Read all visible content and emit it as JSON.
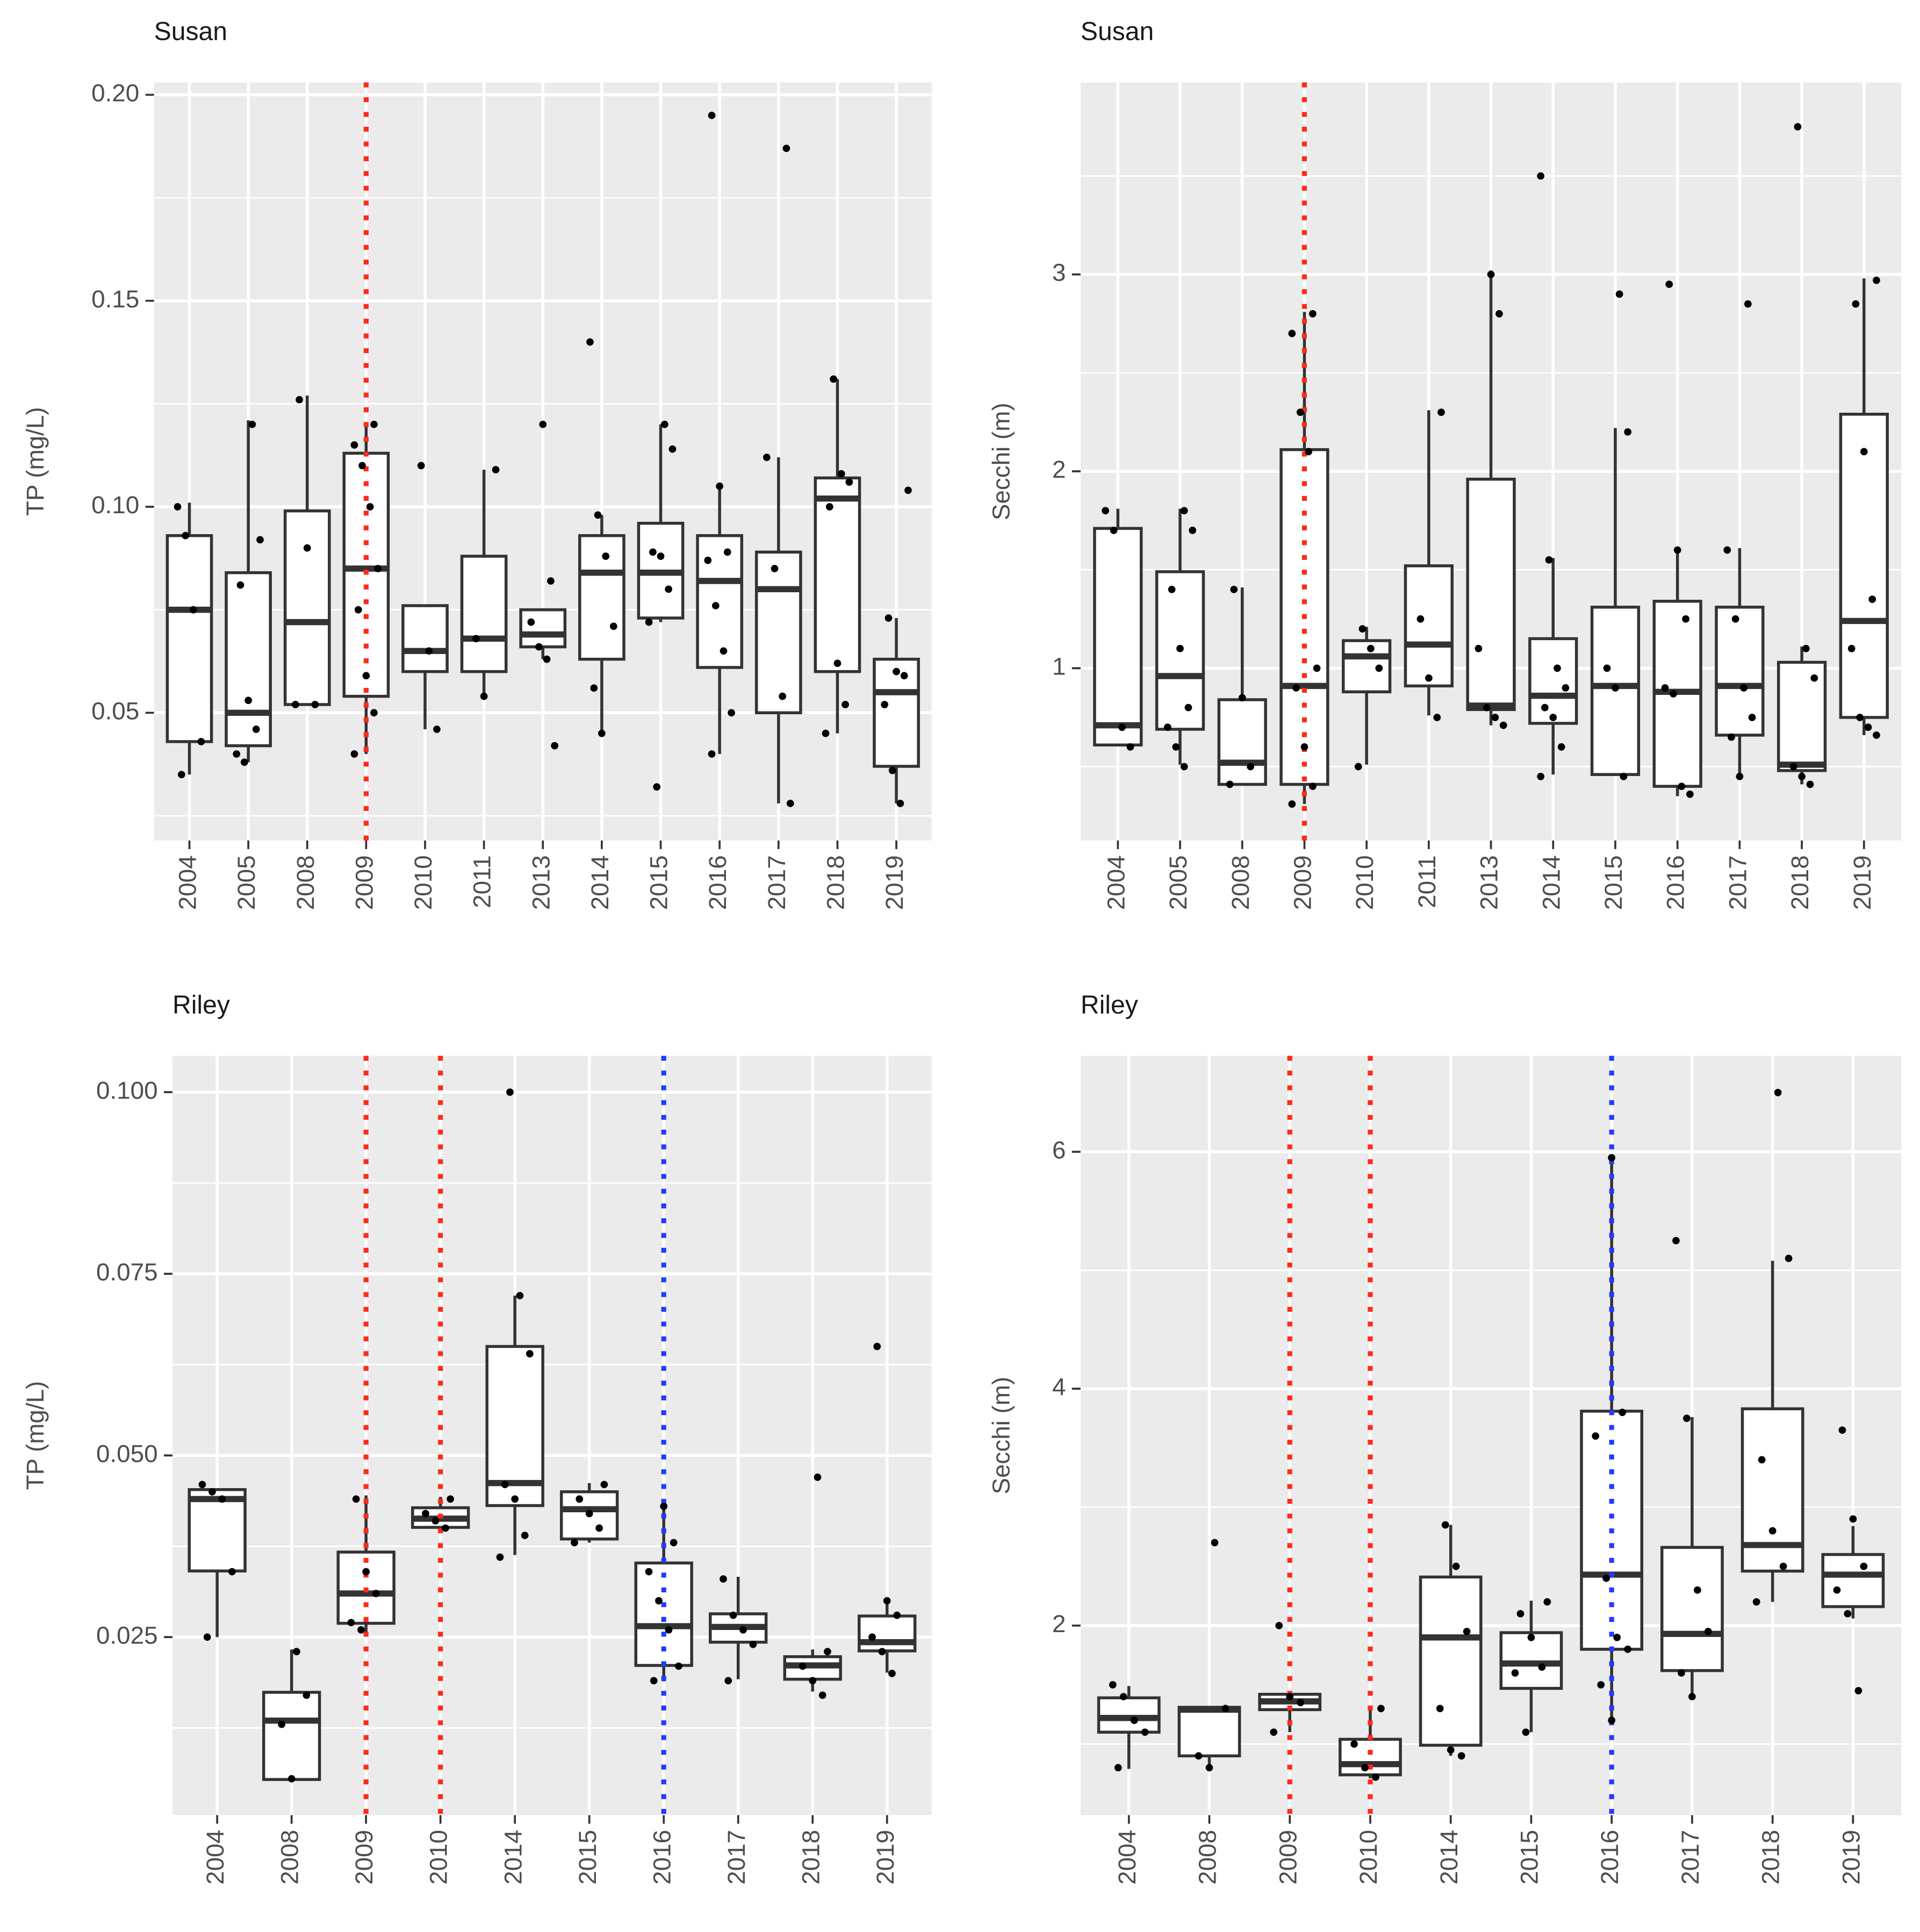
{
  "chart_data": [
    {
      "type": "boxplot",
      "title": "Susan",
      "ylabel": "TP (mg/L)",
      "categories": [
        "2004",
        "2005",
        "2008",
        "2009",
        "2010",
        "2011",
        "2013",
        "2014",
        "2015",
        "2016",
        "2017",
        "2018",
        "2019"
      ],
      "ylim": [
        0.019,
        0.203
      ],
      "yticks": [
        0.05,
        {
          "value": 0.1,
          "label": "0.10"
        },
        0.15,
        {
          "value": 0.2,
          "label": "0.20"
        }
      ],
      "grid": true,
      "reference_lines": [
        {
          "at": "2009",
          "color": "#ff2a1a"
        }
      ],
      "boxes": [
        {
          "whisker_low": 0.035,
          "q1": 0.043,
          "median": 0.075,
          "q3": 0.093,
          "whisker_high": 0.101,
          "points": [
            0.1,
            0.093,
            0.075,
            0.043,
            0.035
          ]
        },
        {
          "whisker_low": 0.038,
          "q1": 0.042,
          "median": 0.05,
          "q3": 0.084,
          "whisker_high": 0.121,
          "points": [
            0.12,
            0.092,
            0.081,
            0.053,
            0.046,
            0.04,
            0.038
          ]
        },
        {
          "whisker_low": 0.052,
          "q1": 0.052,
          "median": 0.072,
          "q3": 0.099,
          "whisker_high": 0.127,
          "points": [
            0.126,
            0.09,
            0.052,
            0.052
          ]
        },
        {
          "whisker_low": 0.04,
          "q1": 0.054,
          "median": 0.085,
          "q3": 0.113,
          "whisker_high": 0.12,
          "points": [
            0.12,
            0.115,
            0.11,
            0.1,
            0.085,
            0.075,
            0.059,
            0.05,
            0.04
          ]
        },
        {
          "whisker_low": 0.046,
          "q1": 0.06,
          "median": 0.065,
          "q3": 0.076,
          "whisker_high": 0.076,
          "points": [
            0.11,
            0.065,
            0.046
          ]
        },
        {
          "whisker_low": 0.054,
          "q1": 0.06,
          "median": 0.068,
          "q3": 0.088,
          "whisker_high": 0.109,
          "points": [
            0.109,
            0.068,
            0.054
          ]
        },
        {
          "whisker_low": 0.063,
          "q1": 0.066,
          "median": 0.069,
          "q3": 0.075,
          "whisker_high": 0.075,
          "points": [
            0.12,
            0.082,
            0.072,
            0.066,
            0.063,
            0.042
          ]
        },
        {
          "whisker_low": 0.045,
          "q1": 0.063,
          "median": 0.084,
          "q3": 0.093,
          "whisker_high": 0.098,
          "points": [
            0.14,
            0.098,
            0.088,
            0.071,
            0.056,
            0.045
          ]
        },
        {
          "whisker_low": 0.072,
          "q1": 0.073,
          "median": 0.084,
          "q3": 0.096,
          "whisker_high": 0.12,
          "points": [
            0.12,
            0.114,
            0.089,
            0.088,
            0.08,
            0.072,
            0.032
          ]
        },
        {
          "whisker_low": 0.04,
          "q1": 0.061,
          "median": 0.082,
          "q3": 0.093,
          "whisker_high": 0.105,
          "points": [
            0.195,
            0.105,
            0.089,
            0.087,
            0.076,
            0.065,
            0.05,
            0.04
          ]
        },
        {
          "whisker_low": 0.028,
          "q1": 0.05,
          "median": 0.08,
          "q3": 0.089,
          "whisker_high": 0.112,
          "points": [
            0.187,
            0.112,
            0.085,
            0.054,
            0.028
          ]
        },
        {
          "whisker_low": 0.045,
          "q1": 0.06,
          "median": 0.102,
          "q3": 0.107,
          "whisker_high": 0.131,
          "points": [
            0.131,
            0.108,
            0.106,
            0.1,
            0.062,
            0.052,
            0.045
          ]
        },
        {
          "whisker_low": 0.028,
          "q1": 0.037,
          "median": 0.055,
          "q3": 0.063,
          "whisker_high": 0.073,
          "points": [
            0.104,
            0.073,
            0.06,
            0.059,
            0.052,
            0.036,
            0.028
          ]
        }
      ]
    },
    {
      "type": "boxplot",
      "title": "Susan",
      "ylabel": "Secchi (m)",
      "categories": [
        "2004",
        "2005",
        "2008",
        "2009",
        "2010",
        "2011",
        "2013",
        "2014",
        "2015",
        "2016",
        "2017",
        "2018",
        "2019"
      ],
      "ylim": [
        0.125,
        3.975
      ],
      "yticks": [
        1,
        2,
        3
      ],
      "grid": true,
      "reference_lines": [
        {
          "at": "2009",
          "color": "#ff2a1a"
        }
      ],
      "boxes": [
        {
          "whisker_low": 0.61,
          "q1": 0.61,
          "median": 0.71,
          "q3": 1.71,
          "whisker_high": 1.81,
          "points": [
            1.8,
            1.7,
            0.7,
            0.6
          ]
        },
        {
          "whisker_low": 0.51,
          "q1": 0.69,
          "median": 0.96,
          "q3": 1.49,
          "whisker_high": 1.81,
          "points": [
            1.8,
            1.7,
            1.4,
            1.1,
            0.8,
            0.7,
            0.6,
            0.5
          ]
        },
        {
          "whisker_low": 0.41,
          "q1": 0.41,
          "median": 0.52,
          "q3": 0.84,
          "whisker_high": 1.41,
          "points": [
            1.4,
            0.85,
            0.5,
            0.41
          ]
        },
        {
          "whisker_low": 0.31,
          "q1": 0.41,
          "median": 0.91,
          "q3": 2.11,
          "whisker_high": 2.81,
          "points": [
            2.8,
            2.7,
            2.3,
            2.1,
            1.0,
            0.9,
            0.6,
            0.4,
            0.31
          ]
        },
        {
          "whisker_low": 0.51,
          "q1": 0.88,
          "median": 1.06,
          "q3": 1.14,
          "whisker_high": 1.21,
          "points": [
            1.2,
            1.1,
            1.0,
            0.5
          ]
        },
        {
          "whisker_low": 0.76,
          "q1": 0.91,
          "median": 1.12,
          "q3": 1.52,
          "whisker_high": 2.31,
          "points": [
            2.3,
            1.25,
            0.95,
            0.75
          ]
        },
        {
          "whisker_low": 0.71,
          "q1": 0.79,
          "median": 0.81,
          "q3": 1.96,
          "whisker_high": 3.02,
          "points": [
            3.0,
            2.8,
            1.1,
            0.8,
            0.75,
            0.71
          ]
        },
        {
          "whisker_low": 0.46,
          "q1": 0.72,
          "median": 0.86,
          "q3": 1.15,
          "whisker_high": 1.56,
          "points": [
            3.5,
            1.55,
            1.0,
            0.9,
            0.8,
            0.75,
            0.6,
            0.45
          ]
        },
        {
          "whisker_low": 0.46,
          "q1": 0.46,
          "median": 0.91,
          "q3": 1.31,
          "whisker_high": 2.22,
          "points": [
            2.9,
            2.2,
            1.0,
            0.9,
            0.45
          ]
        },
        {
          "whisker_low": 0.35,
          "q1": 0.4,
          "median": 0.88,
          "q3": 1.34,
          "whisker_high": 1.61,
          "points": [
            2.95,
            1.6,
            1.25,
            0.9,
            0.87,
            0.4,
            0.36
          ]
        },
        {
          "whisker_low": 0.46,
          "q1": 0.66,
          "median": 0.91,
          "q3": 1.31,
          "whisker_high": 1.61,
          "points": [
            2.85,
            1.6,
            1.25,
            0.9,
            0.75,
            0.65,
            0.45
          ]
        },
        {
          "whisker_low": 0.41,
          "q1": 0.48,
          "median": 0.51,
          "q3": 1.03,
          "whisker_high": 1.11,
          "points": [
            3.75,
            1.1,
            0.95,
            0.5,
            0.45,
            0.41
          ]
        },
        {
          "whisker_low": 0.66,
          "q1": 0.75,
          "median": 1.24,
          "q3": 2.29,
          "whisker_high": 2.98,
          "points": [
            2.97,
            2.85,
            2.1,
            1.35,
            1.1,
            0.75,
            0.7,
            0.66
          ]
        }
      ]
    },
    {
      "type": "boxplot",
      "title": "Riley",
      "ylabel": "TP (mg/L)",
      "categories": [
        "2004",
        "2008",
        "2009",
        "2010",
        "2014",
        "2015",
        "2016",
        "2017",
        "2018",
        "2019"
      ],
      "ylim": [
        0.0005,
        0.105
      ],
      "yticks": [
        0.025,
        {
          "value": 0.05,
          "label": "0.050"
        },
        0.075,
        {
          "value": 0.1,
          "label": "0.100"
        }
      ],
      "grid": true,
      "reference_lines": [
        {
          "at": "2009",
          "color": "#ff2a1a"
        },
        {
          "at": "2010",
          "color": "#ff2a1a"
        },
        {
          "at": "2016",
          "color": "#1f3cff"
        }
      ],
      "boxes": [
        {
          "whisker_low": 0.025,
          "q1": 0.0341,
          "median": 0.044,
          "q3": 0.0453,
          "whisker_high": 0.0453,
          "points": [
            0.046,
            0.045,
            0.044,
            0.034,
            0.025
          ]
        },
        {
          "whisker_low": 0.0054,
          "q1": 0.0054,
          "median": 0.0135,
          "q3": 0.0174,
          "whisker_high": 0.0233,
          "points": [
            0.023,
            0.017,
            0.013,
            0.0055
          ]
        },
        {
          "whisker_low": 0.0257,
          "q1": 0.0269,
          "median": 0.031,
          "q3": 0.0367,
          "whisker_high": 0.0445,
          "points": [
            0.044,
            0.034,
            0.031,
            0.027,
            0.026
          ]
        },
        {
          "whisker_low": 0.0397,
          "q1": 0.0401,
          "median": 0.0413,
          "q3": 0.0428,
          "whisker_high": 0.0443,
          "points": [
            0.044,
            0.042,
            0.041,
            0.04
          ]
        },
        {
          "whisker_low": 0.0363,
          "q1": 0.0431,
          "median": 0.0462,
          "q3": 0.065,
          "whisker_high": 0.072,
          "points": [
            0.1,
            0.072,
            0.064,
            0.046,
            0.044,
            0.039,
            0.036
          ]
        },
        {
          "whisker_low": 0.038,
          "q1": 0.0385,
          "median": 0.0426,
          "q3": 0.045,
          "whisker_high": 0.0462,
          "points": [
            0.046,
            0.044,
            0.042,
            0.04,
            0.038
          ]
        },
        {
          "whisker_low": 0.0189,
          "q1": 0.0211,
          "median": 0.0265,
          "q3": 0.0352,
          "whisker_high": 0.0433,
          "points": [
            0.043,
            0.038,
            0.034,
            0.03,
            0.026,
            0.021,
            0.019
          ]
        },
        {
          "whisker_low": 0.0192,
          "q1": 0.0243,
          "median": 0.0264,
          "q3": 0.0282,
          "whisker_high": 0.0333,
          "points": [
            0.033,
            0.028,
            0.026,
            0.024,
            0.019
          ]
        },
        {
          "whisker_low": 0.0175,
          "q1": 0.0192,
          "median": 0.0211,
          "q3": 0.0223,
          "whisker_high": 0.0233,
          "points": [
            0.047,
            0.023,
            0.021,
            0.019,
            0.017
          ]
        },
        {
          "whisker_low": 0.0201,
          "q1": 0.0231,
          "median": 0.0243,
          "q3": 0.0279,
          "whisker_high": 0.0302,
          "points": [
            0.065,
            0.03,
            0.028,
            0.025,
            0.023,
            0.02
          ]
        }
      ]
    },
    {
      "type": "boxplot",
      "title": "Riley",
      "ylabel": "Secchi (m)",
      "categories": [
        "2004",
        "2008",
        "2009",
        "2010",
        "2014",
        "2015",
        "2016",
        "2017",
        "2018",
        "2019"
      ],
      "ylim": [
        0.4,
        6.81
      ],
      "yticks": [
        2,
        4,
        6
      ],
      "grid": true,
      "reference_lines": [
        {
          "at": "2009",
          "color": "#ff2a1a"
        },
        {
          "at": "2010",
          "color": "#ff2a1a"
        },
        {
          "at": "2016",
          "color": "#1f3cff"
        }
      ],
      "boxes": [
        {
          "whisker_low": 0.79,
          "q1": 1.1,
          "median": 1.22,
          "q3": 1.39,
          "whisker_high": 1.49,
          "points": [
            1.5,
            1.4,
            1.2,
            1.1,
            0.8
          ]
        },
        {
          "whisker_low": 0.79,
          "q1": 0.9,
          "median": 1.29,
          "q3": 1.31,
          "whisker_high": 1.31,
          "points": [
            2.7,
            1.3,
            0.9,
            0.8
          ]
        },
        {
          "whisker_low": 1.1,
          "q1": 1.29,
          "median": 1.36,
          "q3": 1.42,
          "whisker_high": 1.42,
          "points": [
            2.0,
            1.4,
            1.35,
            1.1
          ]
        },
        {
          "whisker_low": 0.71,
          "q1": 0.74,
          "median": 0.83,
          "q3": 1.04,
          "whisker_high": 1.29,
          "points": [
            1.3,
            1.0,
            0.8,
            0.72
          ]
        },
        {
          "whisker_low": 0.9,
          "q1": 0.99,
          "median": 1.9,
          "q3": 2.41,
          "whisker_high": 2.85,
          "points": [
            2.85,
            2.5,
            1.95,
            1.3,
            0.95,
            0.9
          ]
        },
        {
          "whisker_low": 1.1,
          "q1": 1.47,
          "median": 1.68,
          "q3": 1.94,
          "whisker_high": 2.21,
          "points": [
            2.2,
            2.1,
            1.9,
            1.65,
            1.6,
            1.1
          ]
        },
        {
          "whisker_low": 1.2,
          "q1": 1.8,
          "median": 2.43,
          "q3": 3.81,
          "whisker_high": 5.97,
          "points": [
            5.95,
            3.8,
            3.6,
            2.4,
            1.9,
            1.8,
            1.5,
            1.2
          ]
        },
        {
          "whisker_low": 1.4,
          "q1": 1.62,
          "median": 1.93,
          "q3": 2.66,
          "whisker_high": 3.76,
          "points": [
            5.25,
            3.75,
            2.3,
            1.95,
            1.6,
            1.4
          ]
        },
        {
          "whisker_low": 2.2,
          "q1": 2.46,
          "median": 2.68,
          "q3": 3.83,
          "whisker_high": 5.08,
          "points": [
            6.5,
            5.1,
            3.4,
            2.8,
            2.5,
            2.2
          ]
        },
        {
          "whisker_low": 2.06,
          "q1": 2.16,
          "median": 2.43,
          "q3": 2.6,
          "whisker_high": 2.84,
          "points": [
            3.65,
            2.9,
            2.5,
            2.3,
            2.1,
            1.45
          ]
        }
      ]
    }
  ]
}
